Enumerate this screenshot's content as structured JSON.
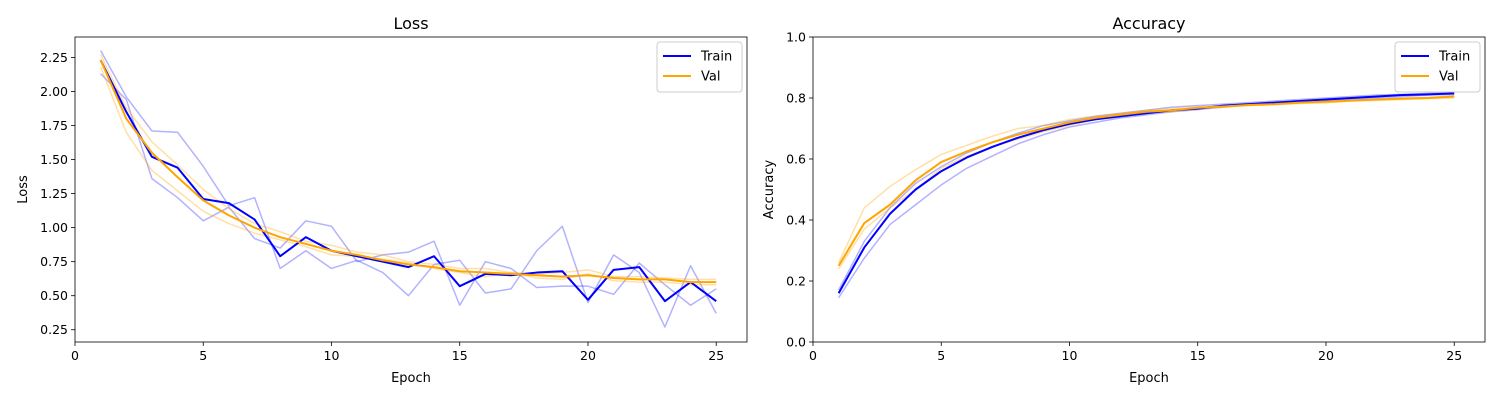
{
  "chart_data": [
    {
      "type": "line",
      "title": "Loss",
      "xlabel": "Epoch",
      "ylabel": "Loss",
      "xlim": [
        0,
        26.2
      ],
      "ylim": [
        0.16,
        2.4
      ],
      "xticks": [
        0,
        5,
        10,
        15,
        20,
        25
      ],
      "yticks": [
        0.25,
        0.5,
        0.75,
        1.0,
        1.25,
        1.5,
        1.75,
        2.0,
        2.25
      ],
      "ytick_format": 2,
      "legend": "top-right",
      "x": [
        1,
        2,
        3,
        4,
        5,
        6,
        7,
        8,
        9,
        10,
        11,
        12,
        13,
        14,
        15,
        16,
        17,
        18,
        19,
        20,
        21,
        22,
        23,
        24,
        25
      ],
      "series": [
        {
          "name": "Train",
          "color": "#0000ff",
          "width": 2,
          "opacity": 1,
          "values": [
            2.23,
            1.85,
            1.52,
            1.44,
            1.21,
            1.18,
            1.06,
            0.79,
            0.93,
            0.83,
            0.79,
            0.75,
            0.71,
            0.79,
            0.57,
            0.66,
            0.65,
            0.67,
            0.68,
            0.47,
            0.69,
            0.71,
            0.46,
            0.6,
            0.46
          ]
        },
        {
          "name": "Val",
          "color": "#ffa500",
          "width": 2,
          "opacity": 1,
          "values": [
            2.23,
            1.8,
            1.55,
            1.37,
            1.2,
            1.09,
            1.0,
            0.93,
            0.88,
            0.83,
            0.8,
            0.76,
            0.73,
            0.71,
            0.68,
            0.67,
            0.66,
            0.65,
            0.64,
            0.65,
            0.63,
            0.62,
            0.62,
            0.6,
            0.6
          ]
        },
        {
          "color": "#0000ff",
          "width": 1.5,
          "opacity": 0.3,
          "values": [
            2.3,
            1.96,
            1.71,
            1.7,
            1.45,
            1.16,
            1.22,
            0.7,
            0.83,
            0.7,
            0.76,
            0.67,
            0.5,
            0.73,
            0.76,
            0.52,
            0.55,
            0.83,
            1.01,
            0.45,
            0.8,
            0.67,
            0.27,
            0.72,
            0.37
          ]
        },
        {
          "color": "#0000ff",
          "width": 1.5,
          "opacity": 0.3,
          "values": [
            2.13,
            1.94,
            1.36,
            1.22,
            1.05,
            1.15,
            0.92,
            0.85,
            1.05,
            1.01,
            0.75,
            0.8,
            0.82,
            0.9,
            0.43,
            0.75,
            0.7,
            0.56,
            0.57,
            0.57,
            0.51,
            0.74,
            0.58,
            0.43,
            0.55
          ]
        },
        {
          "color": "#ffa500",
          "width": 1.5,
          "opacity": 0.35,
          "values": [
            2.18,
            1.7,
            1.42,
            1.27,
            1.12,
            1.03,
            0.96,
            0.91,
            0.86,
            0.8,
            0.79,
            0.77,
            0.74,
            0.7,
            0.67,
            0.64,
            0.67,
            0.63,
            0.62,
            0.66,
            0.61,
            0.6,
            0.6,
            0.58,
            0.58
          ]
        },
        {
          "color": "#ffa500",
          "width": 1.5,
          "opacity": 0.35,
          "values": [
            2.27,
            1.88,
            1.63,
            1.46,
            1.28,
            1.14,
            1.03,
            0.97,
            0.9,
            0.87,
            0.82,
            0.8,
            0.75,
            0.73,
            0.7,
            0.7,
            0.67,
            0.66,
            0.67,
            0.69,
            0.64,
            0.64,
            0.63,
            0.62,
            0.62
          ]
        }
      ]
    },
    {
      "type": "line",
      "title": "Accuracy",
      "xlabel": "Epoch",
      "ylabel": "Accuracy",
      "xlim": [
        0,
        26.2
      ],
      "ylim": [
        0.0,
        1.0
      ],
      "xticks": [
        0,
        5,
        10,
        15,
        20,
        25
      ],
      "yticks": [
        0.0,
        0.2,
        0.4,
        0.6,
        0.8,
        1.0
      ],
      "ytick_format": 1,
      "legend": "top-right",
      "x": [
        1,
        2,
        3,
        4,
        5,
        6,
        7,
        8,
        9,
        10,
        11,
        12,
        13,
        14,
        15,
        16,
        17,
        18,
        19,
        20,
        21,
        22,
        23,
        24,
        25
      ],
      "series": [
        {
          "name": "Train",
          "color": "#0000ff",
          "width": 2,
          "opacity": 1,
          "values": [
            0.16,
            0.31,
            0.42,
            0.5,
            0.56,
            0.605,
            0.64,
            0.67,
            0.695,
            0.715,
            0.73,
            0.74,
            0.75,
            0.76,
            0.765,
            0.775,
            0.78,
            0.785,
            0.79,
            0.795,
            0.8,
            0.805,
            0.81,
            0.812,
            0.815
          ]
        },
        {
          "name": "Val",
          "color": "#ffa500",
          "width": 2,
          "opacity": 1,
          "values": [
            0.25,
            0.39,
            0.45,
            0.53,
            0.59,
            0.625,
            0.655,
            0.68,
            0.7,
            0.72,
            0.735,
            0.745,
            0.755,
            0.76,
            0.768,
            0.772,
            0.777,
            0.78,
            0.785,
            0.788,
            0.792,
            0.795,
            0.798,
            0.8,
            0.805
          ]
        },
        {
          "color": "#0000ff",
          "width": 1.5,
          "opacity": 0.3,
          "values": [
            0.145,
            0.275,
            0.385,
            0.45,
            0.515,
            0.57,
            0.61,
            0.65,
            0.68,
            0.705,
            0.72,
            0.735,
            0.745,
            0.755,
            0.762,
            0.77,
            0.778,
            0.782,
            0.788,
            0.79,
            0.795,
            0.8,
            0.805,
            0.81,
            0.812
          ]
        },
        {
          "color": "#0000ff",
          "width": 1.5,
          "opacity": 0.3,
          "values": [
            0.17,
            0.33,
            0.44,
            0.52,
            0.575,
            0.62,
            0.655,
            0.685,
            0.71,
            0.725,
            0.74,
            0.75,
            0.76,
            0.77,
            0.775,
            0.78,
            0.785,
            0.79,
            0.795,
            0.8,
            0.805,
            0.81,
            0.812,
            0.815,
            0.818
          ]
        },
        {
          "color": "#ffa500",
          "width": 1.5,
          "opacity": 0.35,
          "values": [
            0.26,
            0.44,
            0.51,
            0.565,
            0.615,
            0.645,
            0.675,
            0.7,
            0.71,
            0.73,
            0.74,
            0.75,
            0.76,
            0.765,
            0.77,
            0.775,
            0.78,
            0.78,
            0.785,
            0.785,
            0.79,
            0.792,
            0.795,
            0.798,
            0.8
          ]
        },
        {
          "color": "#ffa500",
          "width": 1.5,
          "opacity": 0.35,
          "values": [
            0.24,
            0.37,
            0.44,
            0.5,
            0.57,
            0.61,
            0.64,
            0.665,
            0.69,
            0.71,
            0.73,
            0.74,
            0.75,
            0.755,
            0.765,
            0.77,
            0.775,
            0.778,
            0.782,
            0.785,
            0.79,
            0.795,
            0.8,
            0.802,
            0.808
          ]
        }
      ]
    }
  ]
}
